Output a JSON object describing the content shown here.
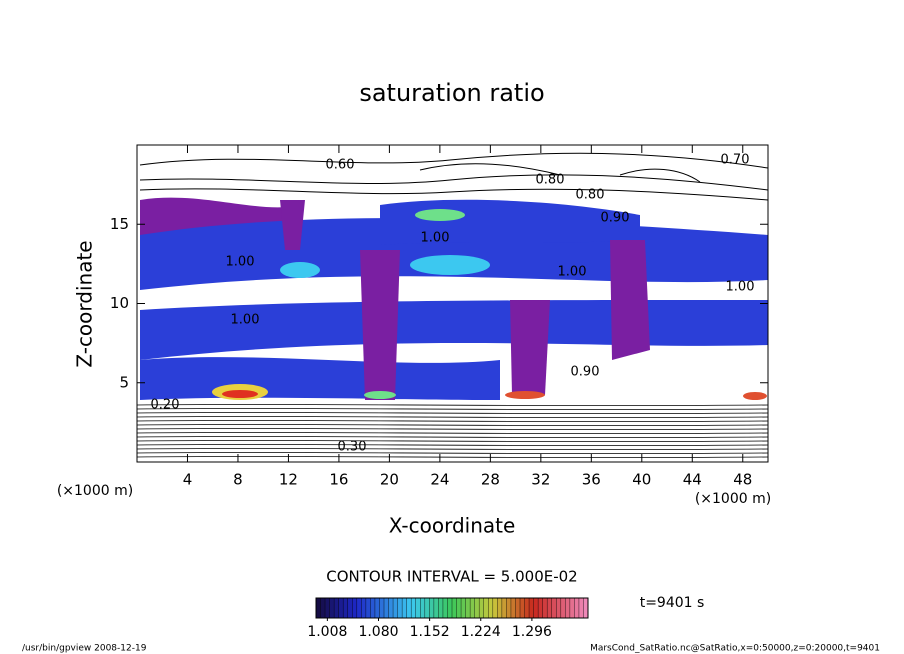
{
  "chart_data": {
    "type": "contour",
    "title": "saturation ratio",
    "x_label": "X-coordinate",
    "y_label": "Z-coordinate",
    "x_unit": "(×1000 m)",
    "y_unit": "(×1000 m)",
    "xlim": [
      0,
      50
    ],
    "xticks": [
      4,
      8,
      12,
      16,
      20,
      24,
      28,
      32,
      36,
      40,
      44,
      48
    ],
    "ylim": [
      0,
      20
    ],
    "yticks": [
      5,
      10,
      15
    ],
    "contour_labels": [
      "0.60",
      "0.70",
      "0.80",
      "0.80",
      "0.90",
      "1.00",
      "1.00",
      "1.00",
      "1.00",
      "1.00",
      "0.90",
      "0.20",
      "0.30"
    ],
    "contour_interval": "CONTOUR INTERVAL = 5.000E-02",
    "clim": [
      0.992,
      1.375
    ],
    "colorbar_ticks": [
      {
        "value": 1.008,
        "label": "1.008"
      },
      {
        "value": 1.08,
        "label": "1.080"
      },
      {
        "value": 1.152,
        "label": "1.152"
      },
      {
        "value": 1.224,
        "label": "1.224"
      },
      {
        "value": 1.296,
        "label": "1.296"
      }
    ],
    "time_label": "t=9401 s",
    "footer_left": "/usr/bin/gpview   2008-12-19",
    "footer_right": "MarsCond_SatRatio.nc@SatRatio,x=0:50000,z=0:20000,t=9401"
  }
}
